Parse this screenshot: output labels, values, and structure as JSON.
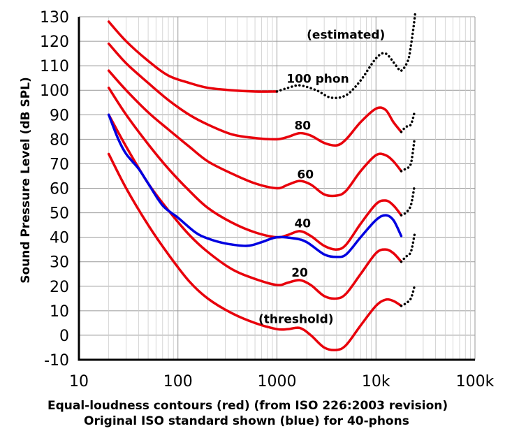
{
  "chart_data": {
    "type": "line",
    "xlabel_line1": "Equal-loudness contours (red) (from ISO 226:2003 revision)",
    "xlabel_line2": "Original ISO standard shown (blue) for 40-phons",
    "ylabel": "Sound Pressure Level (dB SPL)",
    "x_scale": "log",
    "xlim": [
      10,
      100000
    ],
    "ylim": [
      -10,
      130
    ],
    "grid": true,
    "x_ticks": [
      {
        "value": 10,
        "label": "10"
      },
      {
        "value": 100,
        "label": "100"
      },
      {
        "value": 1000,
        "label": "1000"
      },
      {
        "value": 10000,
        "label": "10k"
      },
      {
        "value": 100000,
        "label": "100k"
      }
    ],
    "y_ticks": [
      {
        "value": -10,
        "label": "-10"
      },
      {
        "value": 0,
        "label": "0"
      },
      {
        "value": 10,
        "label": "10"
      },
      {
        "value": 20,
        "label": "20"
      },
      {
        "value": 30,
        "label": "30"
      },
      {
        "value": 40,
        "label": "40"
      },
      {
        "value": 50,
        "label": "50"
      },
      {
        "value": 60,
        "label": "60"
      },
      {
        "value": 70,
        "label": "70"
      },
      {
        "value": 80,
        "label": "80"
      },
      {
        "value": 90,
        "label": "90"
      },
      {
        "value": 100,
        "label": "100"
      },
      {
        "value": 110,
        "label": "110"
      },
      {
        "value": 120,
        "label": "120"
      },
      {
        "value": 130,
        "label": "130"
      }
    ],
    "annotations": [
      {
        "text": "(estimated)",
        "x": 2000,
        "y": 121
      },
      {
        "text": "100 phon",
        "x": 1250,
        "y": 103
      },
      {
        "text": "80",
        "x": 1500,
        "y": 84
      },
      {
        "text": "60",
        "x": 1600,
        "y": 64
      },
      {
        "text": "40",
        "x": 1500,
        "y": 44
      },
      {
        "text": "20",
        "x": 1400,
        "y": 24
      },
      {
        "text": "(threshold)",
        "x": 650,
        "y": 5
      }
    ],
    "series": [
      {
        "id": "phon-100",
        "color": "#e8000b",
        "style": "solid",
        "x": [
          20,
          30,
          50,
          80,
          130,
          200,
          350,
          600,
          1000
        ],
        "y": [
          128,
          120,
          112,
          106,
          103,
          101,
          100,
          99.5,
          99.5
        ]
      },
      {
        "id": "phon-100-est",
        "color": "#000000",
        "style": "dotted",
        "x": [
          1000,
          1300,
          1700,
          2500,
          3500,
          5000,
          7000,
          10000,
          12500,
          16000,
          18000,
          21000,
          22500,
          24000,
          25000
        ],
        "y": [
          99.5,
          101,
          102,
          100,
          97,
          98,
          104,
          113,
          115,
          110,
          108,
          112,
          118,
          126,
          132
        ]
      },
      {
        "id": "phon-80",
        "color": "#e8000b",
        "style": "solid",
        "x": [
          20,
          30,
          50,
          80,
          130,
          200,
          350,
          600,
          1000,
          1300,
          1700,
          2200,
          3000,
          4000,
          5000,
          7000,
          10000,
          12500,
          15000,
          18000
        ],
        "y": [
          119,
          111,
          103,
          96,
          90,
          86,
          82,
          80.5,
          80,
          81,
          82.5,
          81.5,
          78.5,
          77.5,
          80,
          87,
          92.5,
          92,
          87,
          83
        ]
      },
      {
        "id": "phon-80-est",
        "color": "#000000",
        "style": "dotted",
        "x": [
          18000,
          20000,
          22500,
          24500
        ],
        "y": [
          83,
          85,
          86,
          91
        ]
      },
      {
        "id": "phon-60",
        "color": "#e8000b",
        "style": "solid",
        "x": [
          20,
          30,
          50,
          80,
          130,
          200,
          350,
          600,
          1000,
          1300,
          1700,
          2200,
          3000,
          4000,
          5000,
          7000,
          10000,
          12500,
          15000,
          18000
        ],
        "y": [
          108,
          100,
          91,
          84,
          77,
          71,
          66,
          62,
          60,
          61.5,
          63,
          61.5,
          57.5,
          57,
          59,
          67,
          73.5,
          73.5,
          71,
          67
        ]
      },
      {
        "id": "phon-60-est",
        "color": "#000000",
        "style": "dotted",
        "x": [
          18000,
          20000,
          22500,
          24500
        ],
        "y": [
          67,
          68,
          70,
          80
        ]
      },
      {
        "id": "phon-40",
        "color": "#e8000b",
        "style": "solid",
        "x": [
          20,
          30,
          50,
          80,
          130,
          200,
          350,
          600,
          1000,
          1300,
          1700,
          2200,
          3000,
          4000,
          5000,
          7000,
          10000,
          12500,
          15000,
          18000
        ],
        "y": [
          101,
          90,
          78,
          68,
          59,
          52,
          46,
          42,
          40,
          41,
          42.5,
          40.5,
          36.5,
          35,
          37,
          45.5,
          53.5,
          55,
          53,
          49
        ]
      },
      {
        "id": "phon-40-est",
        "color": "#000000",
        "style": "dotted",
        "x": [
          18000,
          20000,
          22500,
          24500
        ],
        "y": [
          49,
          50,
          53,
          61
        ]
      },
      {
        "id": "phon-20",
        "color": "#e8000b",
        "style": "solid",
        "x": [
          20,
          30,
          50,
          80,
          130,
          200,
          350,
          600,
          1000,
          1300,
          1700,
          2200,
          3000,
          4000,
          5000,
          7000,
          10000,
          12500,
          15000,
          18000
        ],
        "y": [
          90,
          77,
          62,
          51,
          41,
          34,
          27,
          23,
          20.5,
          21.5,
          22.5,
          20.5,
          16,
          15,
          17,
          25,
          33.5,
          35,
          33.5,
          30
        ]
      },
      {
        "id": "phon-20-est",
        "color": "#000000",
        "style": "dotted",
        "x": [
          18000,
          20000,
          22500,
          24500
        ],
        "y": [
          30,
          32,
          34,
          41
        ]
      },
      {
        "id": "threshold",
        "color": "#e8000b",
        "style": "solid",
        "x": [
          20,
          30,
          50,
          80,
          130,
          200,
          350,
          600,
          1000,
          1300,
          1700,
          2200,
          3000,
          4000,
          5000,
          7000,
          10000,
          12500,
          15000,
          18000
        ],
        "y": [
          74,
          60,
          45,
          33,
          22,
          15,
          9,
          5,
          2.5,
          2.5,
          3,
          0,
          -5,
          -6,
          -4,
          4,
          12,
          14.5,
          14,
          12
        ]
      },
      {
        "id": "threshold-est",
        "color": "#000000",
        "style": "dotted",
        "x": [
          18000,
          20000,
          22500,
          24500
        ],
        "y": [
          12,
          13,
          15,
          20
        ]
      },
      {
        "id": "iso-original-40",
        "color": "#0000e0",
        "style": "solid",
        "x": [
          20,
          25,
          30,
          40,
          50,
          70,
          100,
          150,
          200,
          300,
          500,
          700,
          1000,
          1500,
          2000,
          3000,
          4000,
          5000,
          7000,
          10000,
          12500,
          15000,
          18000
        ],
        "y": [
          90,
          80,
          74,
          68,
          62,
          53,
          48,
          42,
          39.5,
          37.5,
          36.5,
          38,
          40,
          39.5,
          38,
          33,
          32,
          33,
          40,
          47,
          49,
          47,
          40.5
        ]
      }
    ]
  }
}
